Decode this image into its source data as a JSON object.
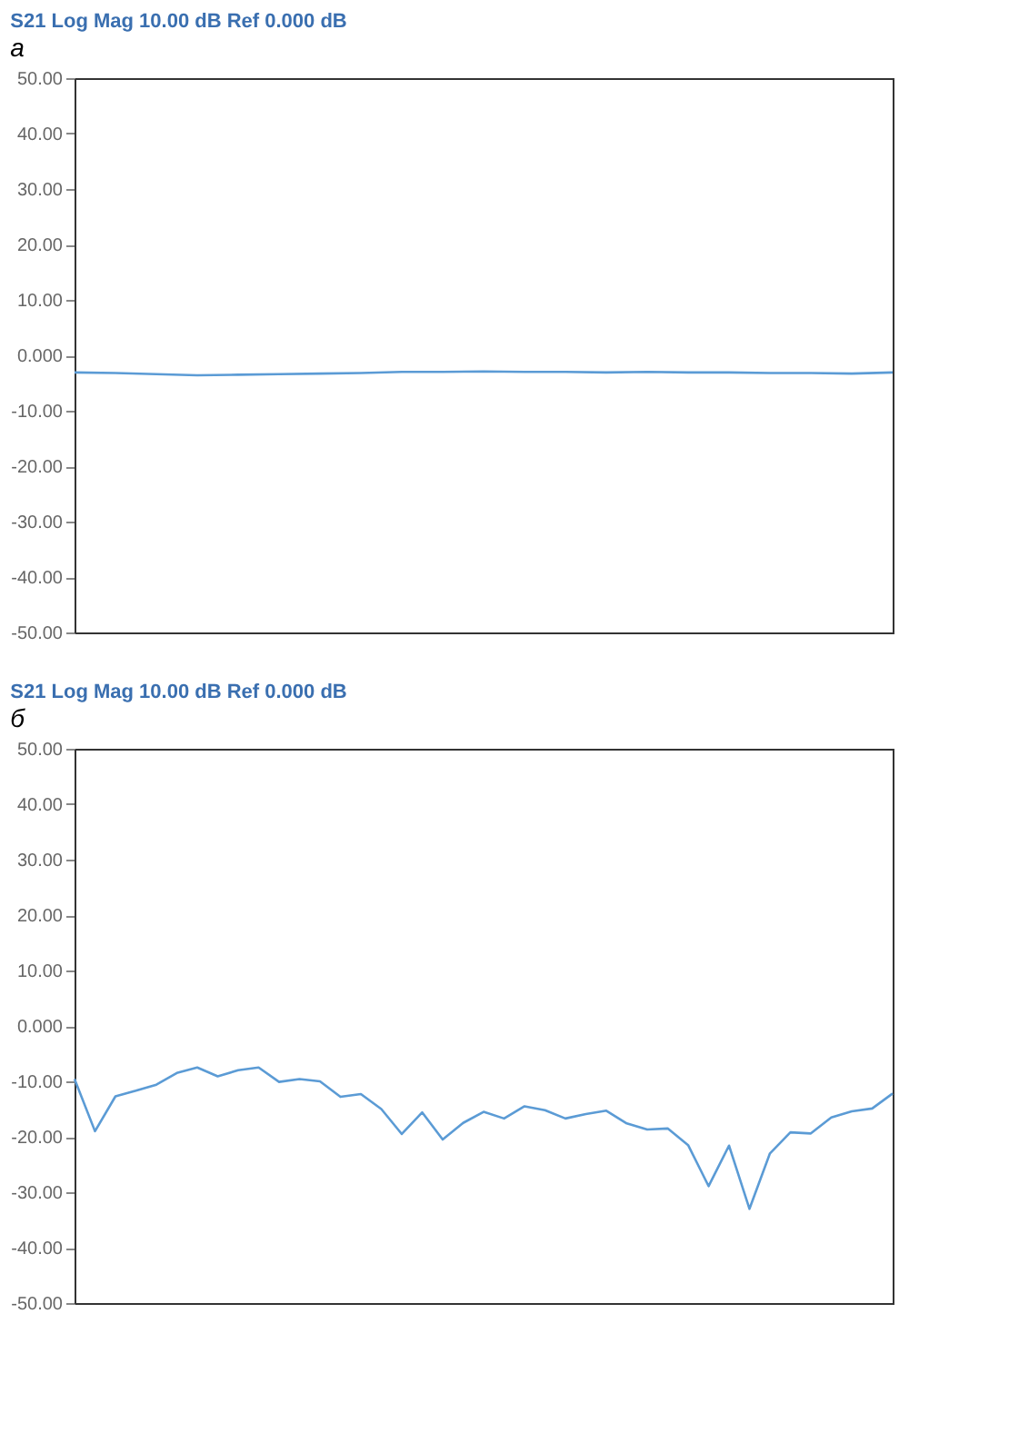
{
  "chart_data": [
    {
      "type": "line",
      "title": "S21 Log Mag 10.00 dB Ref 0.000 dB",
      "subtitle": "a",
      "tick_labels": "y",
      "grid": false,
      "categories": [
        null,
        null,
        null,
        null,
        null,
        null,
        null,
        null,
        null,
        null,
        null,
        null,
        null,
        null,
        null,
        null,
        null,
        null,
        null,
        null,
        null
      ],
      "ylim": [
        -50,
        50
      ],
      "yticks": [
        {
          "value": 50,
          "label": "50.00"
        },
        {
          "value": 40,
          "label": "40.00"
        },
        {
          "value": 30,
          "label": "30.00"
        },
        {
          "value": 20,
          "label": "20.00"
        },
        {
          "value": 10,
          "label": "10.00"
        },
        {
          "value": 0,
          "label": "0.000"
        },
        {
          "value": -10,
          "label": "-10.00"
        },
        {
          "value": -20,
          "label": "-20.00"
        },
        {
          "value": -30,
          "label": "-30.00"
        },
        {
          "value": -40,
          "label": "-40.00"
        },
        {
          "value": -50,
          "label": "-50.00"
        }
      ],
      "series": [
        {
          "color": "#5b9bd5",
          "values": [
            -3.1,
            -3.2,
            -3.4,
            -3.6,
            -3.5,
            -3.4,
            -3.3,
            -3.2,
            -3.0,
            -3.0,
            -2.9,
            -3.0,
            -3.0,
            -3.1,
            -3.0,
            -3.1,
            -3.1,
            -3.2,
            -3.2,
            -3.3,
            -3.1
          ]
        }
      ]
    },
    {
      "type": "line",
      "title": "S21 Log Mag 10.00 dB Ref 0.000 dB",
      "subtitle": "б",
      "tick_labels": "y",
      "grid": false,
      "categories": [
        null,
        null,
        null,
        null,
        null,
        null,
        null,
        null,
        null,
        null,
        null,
        null,
        null,
        null,
        null,
        null,
        null,
        null,
        null,
        null,
        null,
        null,
        null,
        null,
        null,
        null,
        null,
        null,
        null,
        null,
        null,
        null,
        null,
        null,
        null,
        null,
        null,
        null,
        null,
        null,
        null
      ],
      "ylim": [
        -50,
        50
      ],
      "yticks": [
        {
          "value": 50,
          "label": "50.00"
        },
        {
          "value": 40,
          "label": "40.00"
        },
        {
          "value": 30,
          "label": "30.00"
        },
        {
          "value": 20,
          "label": "20.00"
        },
        {
          "value": 10,
          "label": "10.00"
        },
        {
          "value": 0,
          "label": "0.000"
        },
        {
          "value": -10,
          "label": "-10.00"
        },
        {
          "value": -20,
          "label": "-20.00"
        },
        {
          "value": -30,
          "label": "-30.00"
        },
        {
          "value": -40,
          "label": "-40.00"
        },
        {
          "value": -50,
          "label": "-50.00"
        }
      ],
      "series": [
        {
          "color": "#5b9bd5",
          "values": [
            -9.6,
            -19,
            -12.7,
            -11.7,
            -10.6,
            -8.5,
            -7.5,
            -9.1,
            -8,
            -7.5,
            -10.1,
            -9.6,
            -10,
            -12.8,
            -12.3,
            -15,
            -19.5,
            -15.6,
            -20.5,
            -17.5,
            -15.5,
            -16.7,
            -14.5,
            -15.2,
            -16.7,
            -15.9,
            -15.3,
            -17.6,
            -18.7,
            -18.5,
            -21.5,
            -28.9,
            -21.6,
            -33,
            -23,
            -19.2,
            -19.4,
            -16.5,
            -15.4,
            -14.9,
            -12.2
          ]
        }
      ]
    }
  ]
}
